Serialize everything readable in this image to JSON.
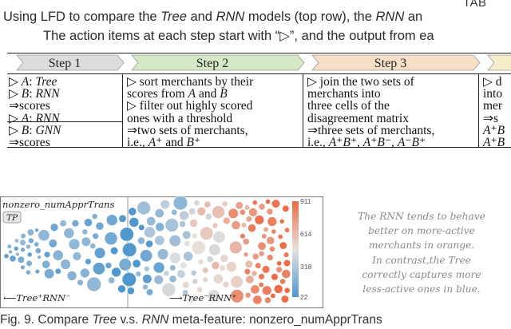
{
  "table_label": "TAB",
  "caption": {
    "line1": [
      {
        "t": "Using LFD to compare the ",
        "i": false
      },
      {
        "t": "Tree",
        "i": true
      },
      {
        "t": " and ",
        "i": false
      },
      {
        "t": "RNN",
        "i": true
      },
      {
        "t": " models (top row), the ",
        "i": false
      },
      {
        "t": "RNN",
        "i": true
      },
      {
        "t": " an",
        "i": false
      }
    ],
    "line2": "The action items at each step start with “▷”, and the output from ea"
  },
  "steps": [
    {
      "label": "Step 1",
      "color": "#dcdcdc",
      "lines": [
        [
          {
            "t": "▷ "
          },
          {
            "t": "A",
            "i": true
          },
          {
            "t": ": "
          },
          {
            "t": "Tree",
            "i": true
          }
        ],
        [
          {
            "t": "▷ "
          },
          {
            "t": "B",
            "i": true
          },
          {
            "t": ": "
          },
          {
            "t": "RNN",
            "i": true
          }
        ],
        [
          {
            "t": "⇒scores"
          }
        ],
        [
          {
            "t": "▷ "
          },
          {
            "t": "A",
            "i": true
          },
          {
            "t": ": "
          },
          {
            "t": "RNN",
            "i": true
          }
        ],
        [
          {
            "t": "▷ "
          },
          {
            "t": "B",
            "i": true
          },
          {
            "t": ": "
          },
          {
            "t": "GNN",
            "i": true
          }
        ],
        [
          {
            "t": "⇒scores"
          }
        ]
      ]
    },
    {
      "label": "Step 2",
      "color": "#d4e8c4",
      "lines": [
        [
          {
            "t": "▷ sort merchants by their"
          }
        ],
        [
          {
            "t": "scores from "
          },
          {
            "t": "A",
            "i": true
          },
          {
            "t": " and "
          },
          {
            "t": "B",
            "i": true
          }
        ],
        [
          {
            "t": "▷ filter out highly scored"
          }
        ],
        [
          {
            "t": "ones with a threshold"
          }
        ],
        [
          {
            "t": "⇒two sets of merchants,"
          }
        ],
        [
          {
            "t": "i.e., "
          },
          {
            "t": "A",
            "i": true
          },
          {
            "t": "⁺ and "
          },
          {
            "t": "B",
            "i": true
          },
          {
            "t": "⁺"
          }
        ]
      ]
    },
    {
      "label": "Step 3",
      "color": "#f6dfc6",
      "lines": [
        [
          {
            "t": "▷ join the two sets of"
          }
        ],
        [
          {
            "t": "merchants into"
          }
        ],
        [
          {
            "t": "three cells of the"
          }
        ],
        [
          {
            "t": "disagreement matrix"
          }
        ],
        [
          {
            "t": "⇒three sets of merchants,"
          }
        ],
        [
          {
            "t": "i.e., "
          },
          {
            "t": "A",
            "i": true
          },
          {
            "t": "⁺"
          },
          {
            "t": "B",
            "i": true
          },
          {
            "t": "⁺, "
          },
          {
            "t": "A",
            "i": true
          },
          {
            "t": "⁺"
          },
          {
            "t": "B",
            "i": true
          },
          {
            "t": "⁻, "
          },
          {
            "t": "A",
            "i": true
          },
          {
            "t": "⁻"
          },
          {
            "t": "B",
            "i": true
          },
          {
            "t": "⁺"
          }
        ]
      ]
    },
    {
      "label": "",
      "color": "#f6eecb",
      "lines": [
        [
          {
            "t": "▷ d"
          }
        ],
        [
          {
            "t": "into"
          }
        ],
        [
          {
            "t": "mer"
          }
        ],
        [
          {
            "t": "⇒s"
          }
        ],
        [
          {
            "t": "A",
            "i": true
          },
          {
            "t": "⁺"
          },
          {
            "t": "B",
            "i": true
          }
        ],
        [
          {
            "t": "A",
            "i": true
          },
          {
            "t": "⁺"
          },
          {
            "t": "B",
            "i": true
          }
        ]
      ]
    }
  ],
  "viz": {
    "feature_label": "nonzero_numApprTrans",
    "tag": "TP",
    "left_label": "⟵Tree⁺RNN⁻",
    "right_label": "⟶Tree⁻RNN⁺",
    "colorbar_ticks": [
      "911",
      "614",
      "318",
      "22"
    ],
    "color_low": "#4f97cf",
    "color_mid": "#e7e2df",
    "color_high": "#ec6b45"
  },
  "note": [
    "The RNN tends to behave",
    "better on more-active",
    "merchants in orange.",
    "In contrast,the Tree",
    "correctly captures more",
    "less-active ones in blue."
  ],
  "fig_caption": [
    {
      "t": "Fig. 9. Compare ",
      "i": false
    },
    {
      "t": "Tree",
      "i": true
    },
    {
      "t": " v.s. ",
      "i": false
    },
    {
      "t": "RNN",
      "i": true
    },
    {
      "t": " meta-feature: nonzero_numApprTrans",
      "i": false
    }
  ]
}
